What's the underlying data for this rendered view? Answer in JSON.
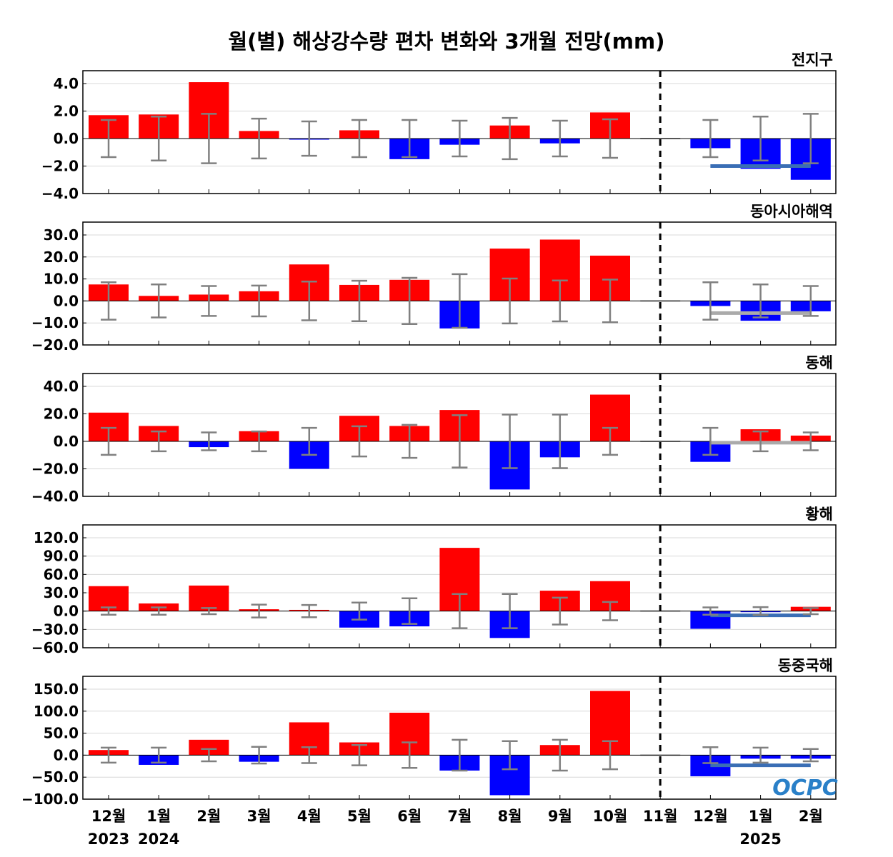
{
  "chart_data": [
    {
      "type": "bar",
      "title": "월(별) 해상강수량 편차 변화와 3개월 전망(mm)",
      "panel_label": "전지구",
      "ylim": [
        -5,
        5
      ],
      "yticks": [
        4.0,
        2.0,
        0.0,
        -2.0,
        -4.0
      ],
      "values": [
        1.7,
        1.75,
        4.1,
        0.55,
        -0.05,
        0.6,
        -1.5,
        -0.45,
        0.95,
        -0.35,
        1.9,
        0,
        -0.7,
        -2.2,
        -3.0
      ],
      "error": [
        1.35,
        1.6,
        1.8,
        1.45,
        1.25,
        1.35,
        1.35,
        1.3,
        1.5,
        1.3,
        1.4,
        null,
        1.35,
        1.6,
        1.8
      ],
      "forecast_line": {
        "value": -2.0,
        "color": "#3a6eb5"
      }
    },
    {
      "type": "bar",
      "panel_label": "동아시아해역",
      "ylim": [
        -20,
        30
      ],
      "yticks": [
        30.0,
        20.0,
        10.0,
        0.0,
        -10.0,
        -20.0
      ],
      "values": [
        7.5,
        2.3,
        2.9,
        4.4,
        16.6,
        7.3,
        9.6,
        -12.5,
        23.8,
        27.9,
        20.6,
        0,
        -2.3,
        -9.0,
        -4.7
      ],
      "error": [
        8.5,
        7.5,
        6.8,
        7.0,
        8.8,
        9.2,
        10.5,
        12.2,
        10.2,
        9.3,
        9.7,
        null,
        8.5,
        7.5,
        6.8
      ],
      "forecast_line": {
        "value": -5.5,
        "color": "#aaaaaa"
      }
    },
    {
      "type": "bar",
      "panel_label": "동해",
      "ylim": [
        -40,
        40
      ],
      "yticks": [
        40.0,
        20.0,
        0.0,
        -20.0,
        -40.0
      ],
      "values": [
        20.9,
        11.2,
        -4.2,
        7.4,
        -20.0,
        18.6,
        11.2,
        22.8,
        -35.0,
        -11.6,
        34.0,
        0,
        -14.9,
        8.8,
        4.2
      ],
      "error": [
        9.8,
        7.2,
        6.5,
        7.2,
        9.8,
        11.0,
        12.0,
        19.0,
        19.5,
        19.5,
        9.8,
        null,
        9.8,
        7.2,
        6.5
      ],
      "forecast_line": {
        "value": -1.0,
        "color": "#aaaaaa"
      }
    },
    {
      "type": "bar",
      "panel_label": "황해",
      "ylim": [
        -60,
        120
      ],
      "yticks": [
        120.0,
        90.0,
        60.0,
        30.0,
        0.0,
        -30.0,
        -60.0
      ],
      "values": [
        40.8,
        12.5,
        41.8,
        3.0,
        2.0,
        -27.0,
        -25.0,
        103.5,
        -44.0,
        33.4,
        49.0,
        0,
        -29.0,
        -1.0,
        7.0
      ],
      "error": [
        6.0,
        6.0,
        5.0,
        10.5,
        10.0,
        14.0,
        21.0,
        28.0,
        28.0,
        22.0,
        15.0,
        null,
        6.0,
        6.5,
        5.0
      ],
      "forecast_line": {
        "value": -7.0,
        "color": "#3a6eb5"
      }
    },
    {
      "type": "bar",
      "panel_label": "동중국해",
      "ylim": [
        -100,
        150
      ],
      "yticks": [
        150.0,
        100.0,
        50.0,
        0.0,
        -50.0,
        -100.0
      ],
      "values": [
        11.7,
        -22.0,
        35.0,
        -15.0,
        74.6,
        29.0,
        96.5,
        -35.0,
        -91.0,
        23.0,
        146.0,
        0,
        -48.0,
        -8.0,
        -8.0
      ],
      "error": [
        17.0,
        17.0,
        14.0,
        19.0,
        18.0,
        23.0,
        29.0,
        35.0,
        32.0,
        35.0,
        32.0,
        null,
        18.0,
        17.0,
        14.0
      ],
      "forecast_line": {
        "value": -23.0,
        "color": "#3a6eb5"
      }
    }
  ],
  "categories": [
    "12월",
    "1월",
    "2월",
    "3월",
    "4월",
    "5월",
    "6월",
    "7월",
    "8월",
    "9월",
    "10월",
    "11월",
    "12월",
    "1월",
    "2월"
  ],
  "year_labels": [
    {
      "index": 0,
      "label": "2023"
    },
    {
      "index": 1,
      "label": "2024"
    },
    {
      "index": 13,
      "label": "2025"
    }
  ],
  "forecast_divider_index": 11,
  "colors": {
    "positive": "#ff0000",
    "negative": "#0000ff",
    "error_bar": "#808080",
    "divider": "#000000"
  },
  "logo": "OCPC"
}
